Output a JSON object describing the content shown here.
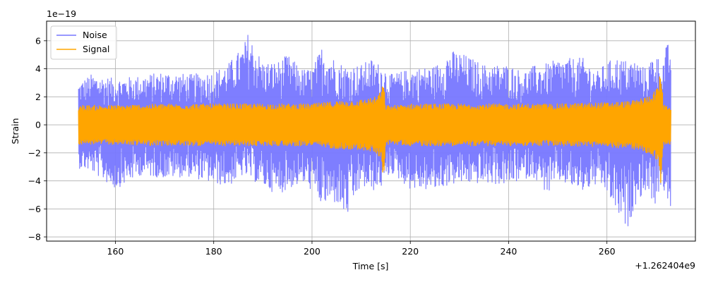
{
  "chart_data": {
    "type": "line",
    "xlabel": "Time [s]",
    "ylabel": "Strain",
    "x_offset_label": "+1.262404e9",
    "y_scale_label": "1e−19",
    "xlim": [
      146,
      278
    ],
    "ylim": [
      -8.3,
      7.4
    ],
    "x_ticks": [
      160,
      180,
      200,
      220,
      240,
      260
    ],
    "x_tick_labels": [
      "160",
      "180",
      "200",
      "220",
      "240",
      "260"
    ],
    "y_ticks": [
      -8,
      -6,
      -4,
      -2,
      0,
      2,
      4,
      6
    ],
    "y_tick_labels": [
      "−8",
      "−6",
      "−4",
      "−2",
      "0",
      "2",
      "4",
      "6"
    ],
    "grid": true,
    "legend_position": "top-left",
    "x_range": [
      152.5,
      273
    ],
    "series": [
      {
        "name": "Noise",
        "color": "#7777ff",
        "envelope": {
          "x": [
            152.5,
            155,
            160,
            165,
            170,
            175,
            180,
            183,
            186,
            187,
            190,
            193,
            195,
            198,
            200,
            202,
            205,
            207,
            210,
            212,
            214.5,
            216,
            220,
            225,
            228,
            230,
            235,
            240,
            243,
            245,
            248,
            250,
            255,
            258,
            260,
            262,
            264,
            266,
            268,
            270,
            271,
            272,
            273
          ],
          "upper": [
            3.0,
            3.6,
            3.3,
            3.5,
            3.8,
            3.6,
            3.8,
            4.4,
            5.6,
            6.6,
            4.5,
            4.5,
            5.0,
            4.0,
            4.0,
            5.6,
            4.6,
            4.2,
            4.3,
            4.7,
            4.2,
            3.6,
            4.0,
            4.2,
            5.3,
            5.2,
            4.3,
            4.3,
            3.8,
            4.2,
            4.4,
            4.7,
            4.8,
            3.8,
            4.5,
            4.8,
            4.6,
            4.6,
            4.0,
            5.5,
            4.0,
            5.6,
            6.0
          ],
          "lower": [
            -3.1,
            -3.3,
            -4.6,
            -3.6,
            -3.8,
            -3.7,
            -4.2,
            -4.4,
            -3.6,
            -3.8,
            -4.4,
            -5.0,
            -4.6,
            -4.2,
            -4.7,
            -5.8,
            -5.6,
            -6.7,
            -4.4,
            -4.8,
            -4.4,
            -3.4,
            -4.6,
            -4.7,
            -4.3,
            -4.2,
            -4.2,
            -4.3,
            -3.9,
            -3.7,
            -5.0,
            -4.0,
            -4.8,
            -4.3,
            -4.9,
            -6.3,
            -7.6,
            -5.5,
            -4.7,
            -5.8,
            -4.4,
            -5.0,
            -6.7
          ]
        }
      },
      {
        "name": "Signal",
        "color": "#ffa500",
        "envelope": {
          "x": [
            152.5,
            160,
            170,
            180,
            190,
            200,
            205,
            210,
            213,
            214.2,
            214.5,
            215,
            217,
            220,
            230,
            240,
            250,
            260,
            265,
            268,
            270,
            270.5,
            271,
            271.5,
            273
          ],
          "upper": [
            1.4,
            1.4,
            1.5,
            1.5,
            1.5,
            1.5,
            1.7,
            1.8,
            2.0,
            2.5,
            3.2,
            1.4,
            1.4,
            1.5,
            1.5,
            1.5,
            1.5,
            1.6,
            1.7,
            2.0,
            2.5,
            3.0,
            4.0,
            1.4,
            1.4
          ],
          "lower": [
            -1.4,
            -1.4,
            -1.5,
            -1.5,
            -1.5,
            -1.5,
            -1.7,
            -1.8,
            -2.0,
            -2.5,
            -4.2,
            -1.4,
            -1.4,
            -1.5,
            -1.5,
            -1.5,
            -1.5,
            -1.6,
            -1.7,
            -2.0,
            -2.5,
            -3.0,
            -4.4,
            -1.4,
            -1.4
          ]
        }
      }
    ]
  }
}
